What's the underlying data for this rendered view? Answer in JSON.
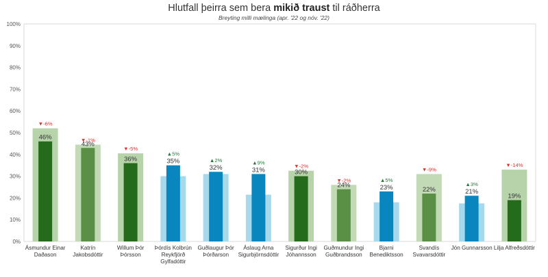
{
  "title": {
    "pre": "Hlutfall þeirra sem bera ",
    "bold": "mikið traust",
    "post": " til ráðherra"
  },
  "subtitle": "Breyting milli mælinga (apr. '22 og nóv. '22)",
  "colors": {
    "dark_green_front": "#246b1c",
    "dark_green_back": "#b7d3a9",
    "mid_green_front": "#5a8f46",
    "mid_green_back": "#c3dab7",
    "blue_front": "#0a86bf",
    "blue_back": "#a6d9ec",
    "up": "#237a3b",
    "down": "#e0302e"
  },
  "chart_data": {
    "type": "bar",
    "title": "Hlutfall þeirra sem bera mikið traust til ráðherra",
    "subtitle": "Breyting milli mælinga (apr. '22 og nóv. '22)",
    "ylim": [
      0,
      100
    ],
    "yticks": [
      "0%",
      "10%",
      "20%",
      "30%",
      "40%",
      "50%",
      "60%",
      "70%",
      "80%",
      "90%",
      "100%"
    ],
    "categories": [
      [
        "Ásmundur Einar",
        "Daðason"
      ],
      [
        "Katrín",
        "Jakobsdóttir"
      ],
      [
        "Willum Þór",
        "Þórsson"
      ],
      [
        "Þórdís Kolbrún",
        "Reykfjörð",
        "Gylfadóttir"
      ],
      [
        "Guðlaugur Þór",
        "Þórðarson"
      ],
      [
        "Áslaug Arna",
        "Sigurbjörnsdóttir"
      ],
      [
        "Sigurður Ingi",
        "Jóhannsson"
      ],
      [
        "Guðmundur Ingi",
        "Guðbrandsson"
      ],
      [
        "Bjarni",
        "Benediktsson"
      ],
      [
        "Svandís",
        "Svavarsdóttir"
      ],
      [
        "Jón Gunnarsson"
      ],
      [
        "Lilja Alfreðsdóttir"
      ]
    ],
    "series": [
      {
        "name": "apr. '22",
        "values": [
          52,
          44.5,
          40.5,
          30,
          31,
          21.5,
          32.5,
          26,
          18,
          31,
          17.5,
          33
        ]
      },
      {
        "name": "nóv. '22",
        "values": [
          46,
          43,
          36,
          35,
          32,
          31,
          30,
          24,
          23,
          22,
          21,
          19
        ]
      }
    ],
    "value_labels": [
      "46%",
      "43%",
      "36%",
      "35%",
      "32%",
      "31%",
      "30%",
      "24%",
      "23%",
      "22%",
      "21%",
      "19%"
    ],
    "changes": [
      "▼-6%",
      "▼-1%",
      "▼-5%",
      "▲5%",
      "▲2%",
      "▲9%",
      "▼-2%",
      "▼-2%",
      "▲5%",
      "▼-9%",
      "▲3%",
      "▼-14%"
    ],
    "color_groups": [
      "dark_green",
      "mid_green",
      "dark_green",
      "blue",
      "blue",
      "blue",
      "dark_green",
      "mid_green",
      "blue",
      "mid_green",
      "blue",
      "dark_green"
    ]
  }
}
